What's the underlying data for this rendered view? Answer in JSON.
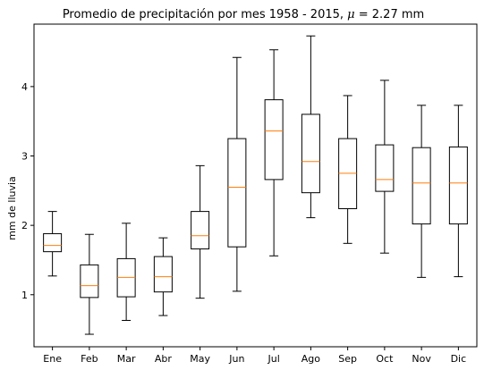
{
  "chart_data": {
    "type": "box",
    "title_prefix": "Promedio de precipitación por mes 1958 - 2015, ",
    "title_symbol": "μ",
    "title_suffix": " = 2.27 mm",
    "xlabel": "",
    "ylabel": "mm de lluvia",
    "ylim": [
      0.25,
      4.9
    ],
    "yticks": [
      1,
      2,
      3,
      4
    ],
    "grid": false,
    "colors": {
      "box": "#000000",
      "median": "#ff7f0e",
      "background": "#ffffff"
    },
    "categories": [
      "Ene",
      "Feb",
      "Mar",
      "Abr",
      "May",
      "Jun",
      "Jul",
      "Ago",
      "Sep",
      "Oct",
      "Nov",
      "Dic"
    ],
    "boxes": [
      {
        "whislo": 1.27,
        "q1": 1.62,
        "med": 1.71,
        "q3": 1.88,
        "whishi": 2.2
      },
      {
        "whislo": 0.43,
        "q1": 0.96,
        "med": 1.13,
        "q3": 1.43,
        "whishi": 1.87
      },
      {
        "whislo": 0.63,
        "q1": 0.97,
        "med": 1.25,
        "q3": 1.52,
        "whishi": 2.03
      },
      {
        "whislo": 0.7,
        "q1": 1.04,
        "med": 1.26,
        "q3": 1.55,
        "whishi": 1.82
      },
      {
        "whislo": 0.95,
        "q1": 1.66,
        "med": 1.85,
        "q3": 2.2,
        "whishi": 2.86
      },
      {
        "whislo": 1.05,
        "q1": 1.69,
        "med": 2.55,
        "q3": 3.25,
        "whishi": 4.42
      },
      {
        "whislo": 1.56,
        "q1": 2.66,
        "med": 3.36,
        "q3": 3.81,
        "whishi": 4.53
      },
      {
        "whislo": 2.11,
        "q1": 2.47,
        "med": 2.92,
        "q3": 3.6,
        "whishi": 4.73
      },
      {
        "whislo": 1.74,
        "q1": 2.24,
        "med": 2.75,
        "q3": 3.25,
        "whishi": 3.87
      },
      {
        "whislo": 1.6,
        "q1": 2.49,
        "med": 2.66,
        "q3": 3.16,
        "whishi": 4.09
      },
      {
        "whislo": 1.25,
        "q1": 2.02,
        "med": 2.61,
        "q3": 3.12,
        "whishi": 3.73
      },
      {
        "whislo": 1.26,
        "q1": 2.02,
        "med": 2.61,
        "q3": 3.13,
        "whishi": 3.73
      }
    ]
  }
}
